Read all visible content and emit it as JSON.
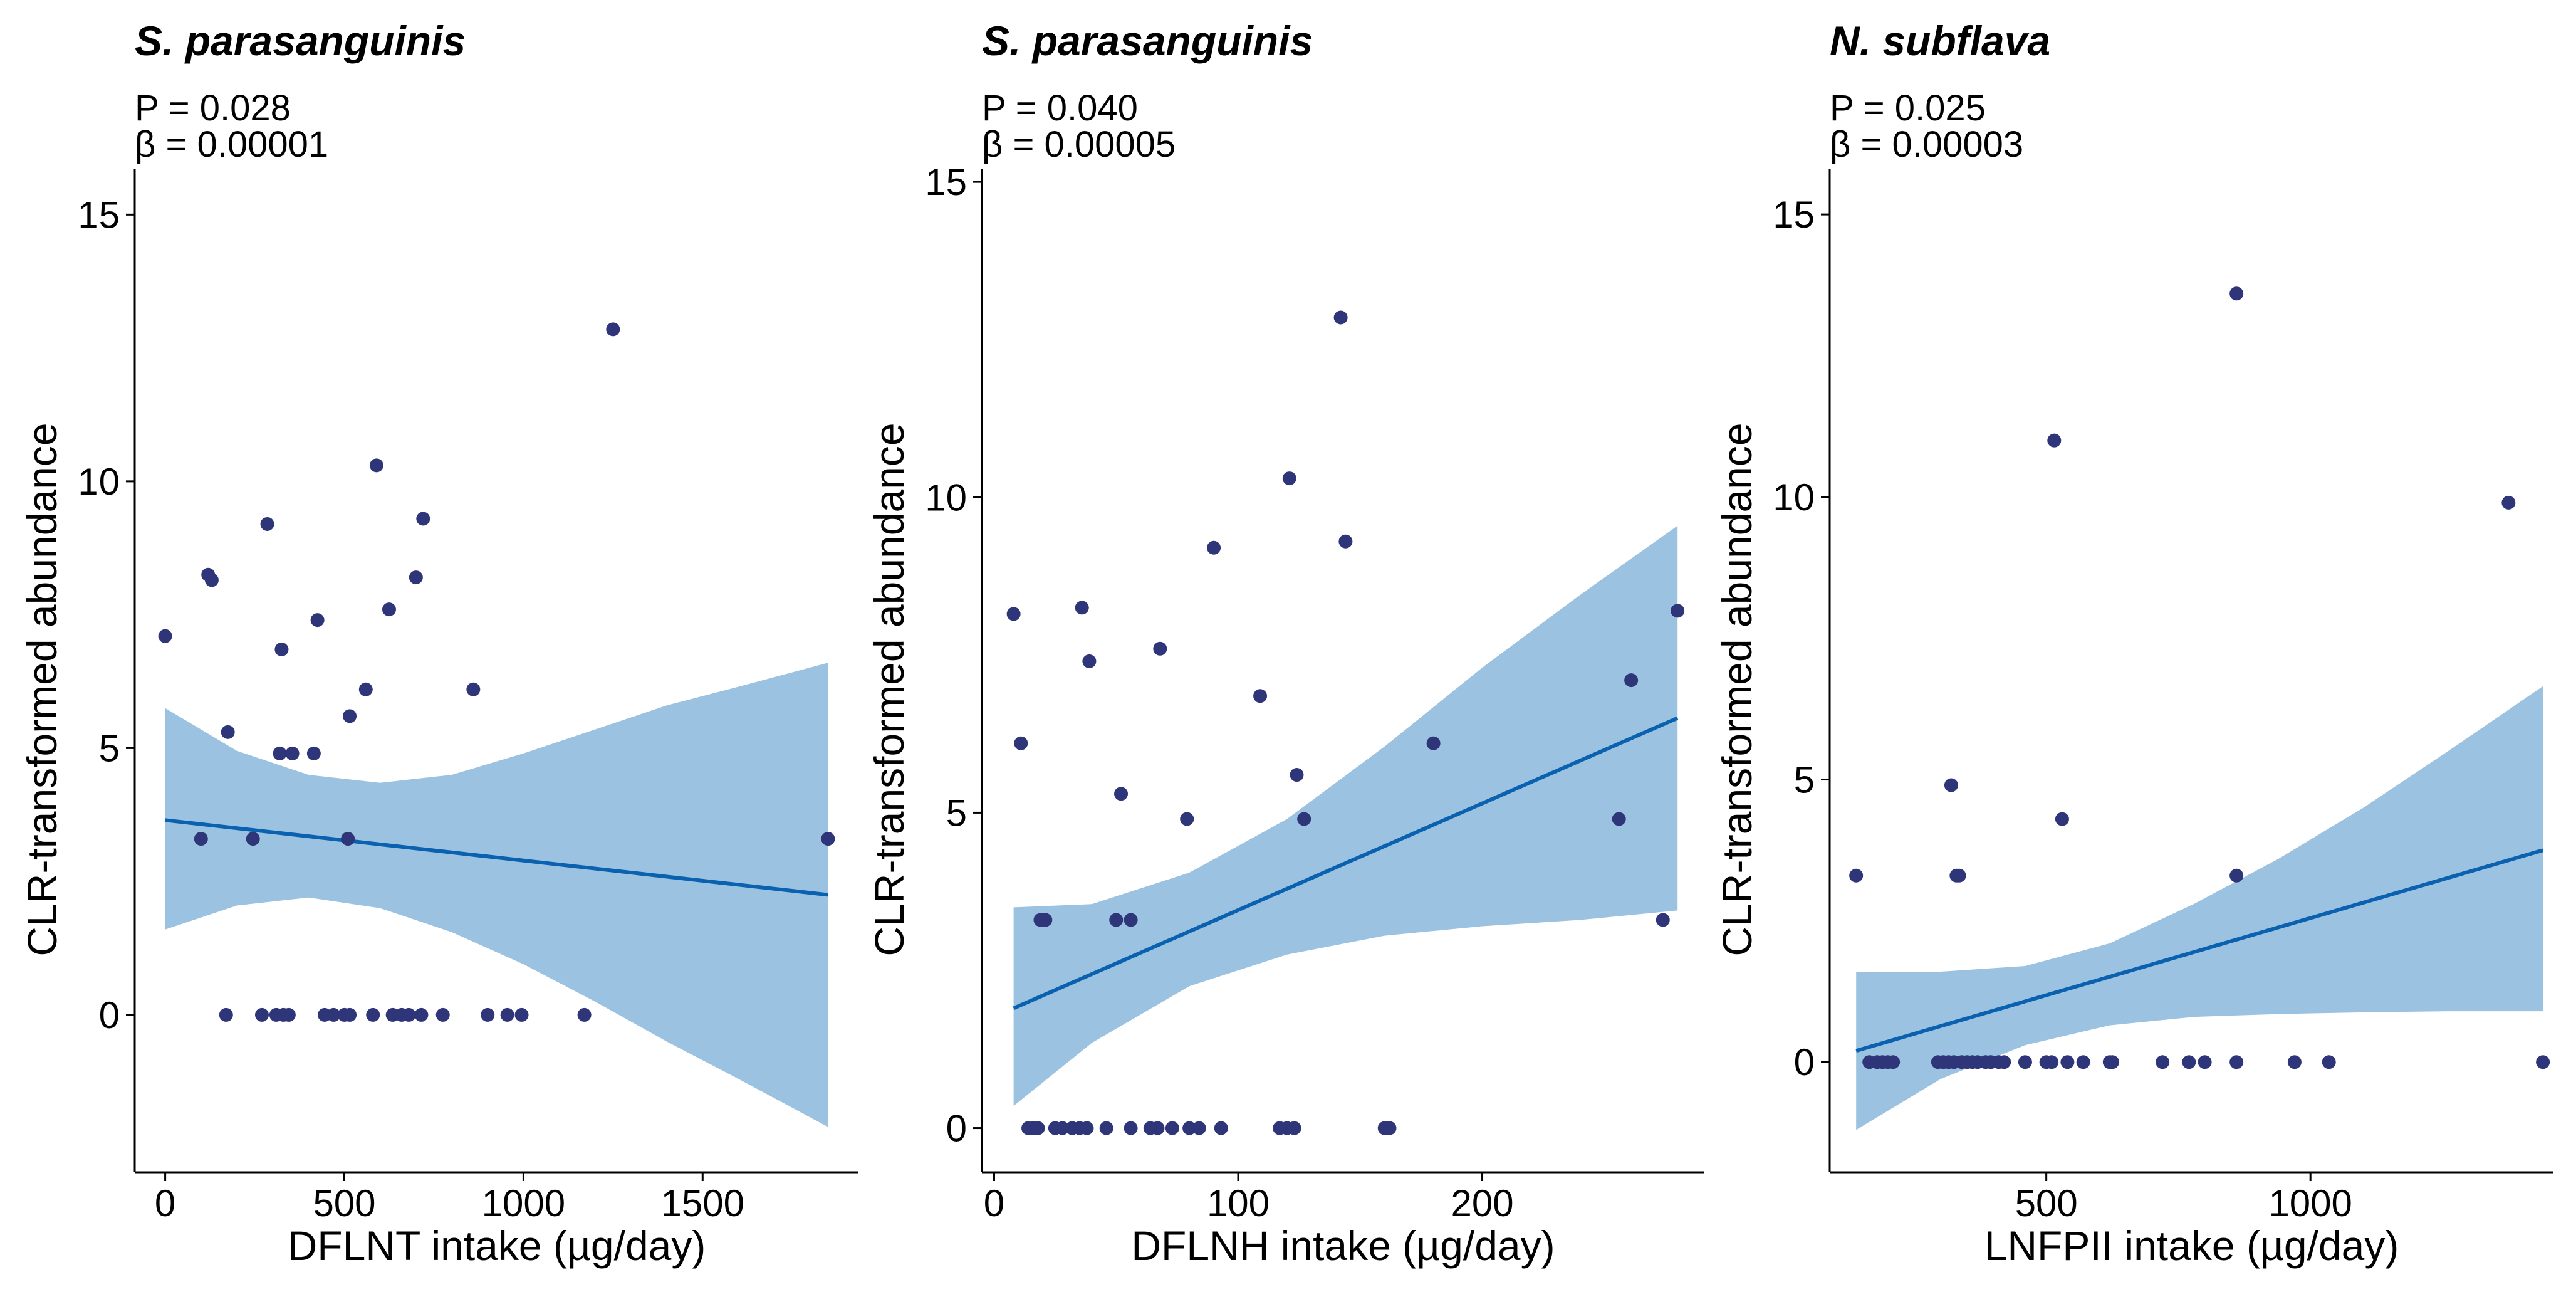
{
  "colors": {
    "point": "#2E3679",
    "line": "#0A61B0",
    "band": "#9BC2E0",
    "axis": "#000000",
    "text": "#000000"
  },
  "chart_data": [
    {
      "type": "scatter",
      "title": "S. parasanguinis",
      "p_text": "P = 0.028",
      "beta_text": "β = 0.00001",
      "xlabel": "DFLNT intake (µg/day)",
      "ylabel": "CLR-transformed abundance",
      "xlim": [
        -85,
        1935
      ],
      "ylim": [
        -2.95,
        15.85
      ],
      "xticks": [
        0,
        500,
        1000,
        1500
      ],
      "yticks": [
        0,
        5,
        10,
        15
      ],
      "grid": false,
      "legend": "none",
      "points": [
        [
          0,
          7.1
        ],
        [
          100,
          3.3
        ],
        [
          120,
          8.25
        ],
        [
          130,
          8.15
        ],
        [
          170,
          0
        ],
        [
          175,
          5.3
        ],
        [
          245,
          3.3
        ],
        [
          270,
          0
        ],
        [
          285,
          9.2
        ],
        [
          310,
          0
        ],
        [
          320,
          4.9
        ],
        [
          325,
          6.85
        ],
        [
          330,
          0
        ],
        [
          345,
          0
        ],
        [
          355,
          4.9
        ],
        [
          415,
          4.9
        ],
        [
          425,
          7.4
        ],
        [
          445,
          0
        ],
        [
          470,
          0
        ],
        [
          500,
          0
        ],
        [
          510,
          3.3
        ],
        [
          515,
          5.6
        ],
        [
          515,
          0
        ],
        [
          560,
          6.1
        ],
        [
          580,
          0
        ],
        [
          590,
          10.3
        ],
        [
          625,
          7.6
        ],
        [
          635,
          0
        ],
        [
          660,
          0
        ],
        [
          680,
          0
        ],
        [
          700,
          8.2
        ],
        [
          715,
          0
        ],
        [
          720,
          9.3
        ],
        [
          775,
          0
        ],
        [
          860,
          6.1
        ],
        [
          900,
          0
        ],
        [
          955,
          0
        ],
        [
          995,
          0
        ],
        [
          1170,
          0
        ],
        [
          1250,
          12.85
        ],
        [
          1850,
          3.3
        ]
      ],
      "fit": {
        "x": [
          0,
          1850
        ],
        "y": [
          3.65,
          2.25
        ]
      },
      "band": {
        "x": [
          0,
          200,
          400,
          600,
          800,
          1000,
          1200,
          1400,
          1600,
          1850
        ],
        "lower": [
          1.6,
          2.05,
          2.2,
          2.0,
          1.55,
          0.95,
          0.25,
          -0.5,
          -1.2,
          -2.1
        ],
        "upper": [
          5.75,
          4.95,
          4.5,
          4.35,
          4.5,
          4.9,
          5.35,
          5.8,
          6.15,
          6.6
        ]
      }
    },
    {
      "type": "scatter",
      "title": "S. parasanguinis",
      "p_text": "P = 0.040",
      "beta_text": "β = 0.00005",
      "xlabel": "DFLNH intake (µg/day)",
      "ylabel": "CLR-transformed abundance",
      "xlim": [
        -5,
        291
      ],
      "ylim": [
        -0.7,
        15.2
      ],
      "xticks": [
        0,
        100,
        200
      ],
      "yticks": [
        0,
        5,
        10,
        15
      ],
      "grid": false,
      "legend": "none",
      "points": [
        [
          8,
          8.15
        ],
        [
          11,
          6.1
        ],
        [
          14,
          0
        ],
        [
          16,
          0
        ],
        [
          18,
          0
        ],
        [
          19,
          3.3
        ],
        [
          21,
          3.3
        ],
        [
          25,
          0
        ],
        [
          28,
          0
        ],
        [
          32,
          0
        ],
        [
          35,
          0
        ],
        [
          36,
          8.25
        ],
        [
          38,
          0
        ],
        [
          39,
          7.4
        ],
        [
          46,
          0
        ],
        [
          50,
          3.3
        ],
        [
          52,
          5.3
        ],
        [
          56,
          0
        ],
        [
          56,
          3.3
        ],
        [
          64,
          0
        ],
        [
          67,
          0
        ],
        [
          68,
          7.6
        ],
        [
          73,
          0
        ],
        [
          79,
          4.9
        ],
        [
          80,
          0
        ],
        [
          84,
          0
        ],
        [
          90,
          9.2
        ],
        [
          93,
          0
        ],
        [
          109,
          6.85
        ],
        [
          117,
          0
        ],
        [
          120,
          0
        ],
        [
          121,
          10.3
        ],
        [
          123,
          0
        ],
        [
          124,
          5.6
        ],
        [
          127,
          4.9
        ],
        [
          142,
          12.85
        ],
        [
          144,
          9.3
        ],
        [
          160,
          0
        ],
        [
          162,
          0
        ],
        [
          180,
          6.1
        ],
        [
          256,
          4.9
        ],
        [
          261,
          7.1
        ],
        [
          274,
          3.3
        ],
        [
          280,
          8.2
        ]
      ],
      "fit": {
        "x": [
          8,
          280
        ],
        "y": [
          1.9,
          6.5
        ]
      },
      "band": {
        "x": [
          8,
          40,
          80,
          120,
          160,
          200,
          240,
          280
        ],
        "lower": [
          0.35,
          1.35,
          2.25,
          2.75,
          3.05,
          3.2,
          3.3,
          3.45
        ],
        "upper": [
          3.5,
          3.55,
          4.05,
          4.9,
          6.05,
          7.3,
          8.45,
          9.55
        ]
      }
    },
    {
      "type": "scatter",
      "title": "N. subflava",
      "p_text": "P = 0.025",
      "beta_text": "β = 0.00003",
      "xlabel": "LNFPII intake (µg/day)",
      "ylabel": "CLR-transformed abundance",
      "xlim": [
        90,
        1460
      ],
      "ylim": [
        -1.95,
        15.8
      ],
      "xticks": [
        500,
        1000
      ],
      "yticks": [
        0,
        5,
        10,
        15
      ],
      "grid": false,
      "legend": "none",
      "points": [
        [
          140,
          3.3
        ],
        [
          165,
          0
        ],
        [
          180,
          0
        ],
        [
          190,
          0
        ],
        [
          200,
          0
        ],
        [
          210,
          0
        ],
        [
          295,
          0
        ],
        [
          305,
          0
        ],
        [
          315,
          0
        ],
        [
          320,
          4.9
        ],
        [
          325,
          0
        ],
        [
          330,
          3.3
        ],
        [
          335,
          3.3
        ],
        [
          340,
          0
        ],
        [
          350,
          0
        ],
        [
          360,
          0
        ],
        [
          370,
          0
        ],
        [
          385,
          0
        ],
        [
          395,
          0
        ],
        [
          410,
          0
        ],
        [
          420,
          0
        ],
        [
          460,
          0
        ],
        [
          500,
          0
        ],
        [
          510,
          0
        ],
        [
          515,
          11
        ],
        [
          530,
          4.3
        ],
        [
          540,
          0
        ],
        [
          570,
          0
        ],
        [
          620,
          0
        ],
        [
          625,
          0
        ],
        [
          720,
          0
        ],
        [
          770,
          0
        ],
        [
          800,
          0
        ],
        [
          860,
          3.3
        ],
        [
          860,
          0
        ],
        [
          860,
          13.6
        ],
        [
          970,
          0
        ],
        [
          1035,
          0
        ],
        [
          1375,
          9.9
        ],
        [
          1440,
          0
        ]
      ],
      "fit": {
        "x": [
          140,
          1440
        ],
        "y": [
          0.2,
          3.75
        ]
      },
      "band": {
        "x": [
          140,
          300,
          460,
          620,
          780,
          940,
          1100,
          1260,
          1440
        ],
        "lower": [
          -1.2,
          -0.3,
          0.3,
          0.65,
          0.8,
          0.85,
          0.88,
          0.9,
          0.9
        ],
        "upper": [
          1.6,
          1.6,
          1.7,
          2.1,
          2.8,
          3.6,
          4.5,
          5.5,
          6.65
        ]
      }
    }
  ]
}
